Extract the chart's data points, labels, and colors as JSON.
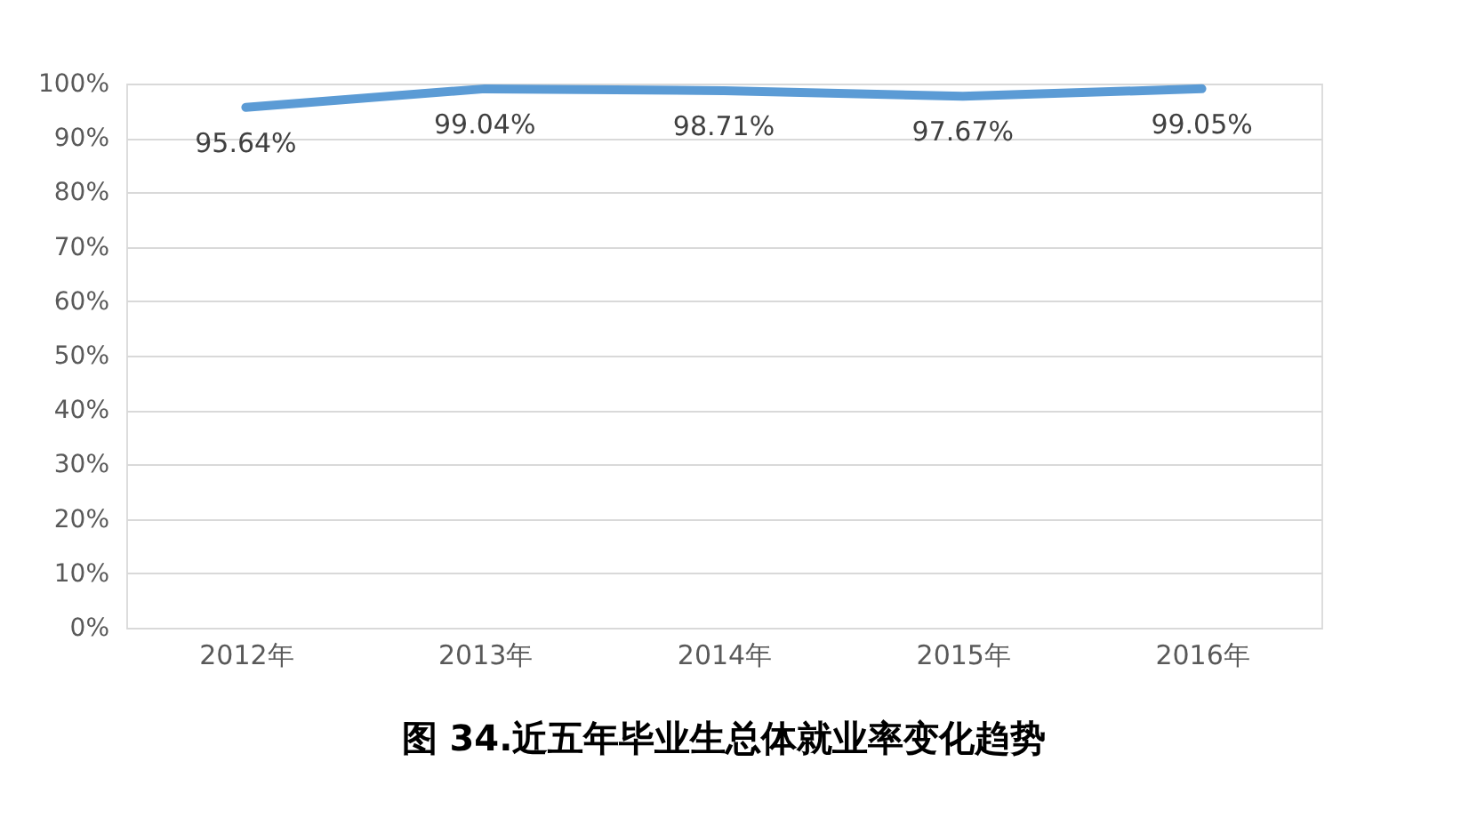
{
  "chart_data": {
    "type": "line",
    "title": "图 34.近五年毕业生总体就业率变化趋势",
    "categories": [
      "2012年",
      "2013年",
      "2014年",
      "2015年",
      "2016年"
    ],
    "series": [
      {
        "color": "#5b9bd5",
        "values": [
          95.64,
          99.04,
          98.71,
          97.67,
          99.05
        ],
        "value_labels": [
          "95.64%",
          "99.04%",
          "98.71%",
          "97.67%",
          "99.05%"
        ]
      }
    ],
    "ylim": [
      0,
      100
    ],
    "yticks": [
      {
        "value": 0,
        "label": "0%"
      },
      {
        "value": 10,
        "label": "10%"
      },
      {
        "value": 20,
        "label": "20%"
      },
      {
        "value": 30,
        "label": "30%"
      },
      {
        "value": 40,
        "label": "40%"
      },
      {
        "value": 50,
        "label": "50%"
      },
      {
        "value": 60,
        "label": "60%"
      },
      {
        "value": 70,
        "label": "70%"
      },
      {
        "value": 80,
        "label": "80%"
      },
      {
        "value": 90,
        "label": "90%"
      },
      {
        "value": 100,
        "label": "100%"
      }
    ],
    "grid": "y",
    "marker": "none",
    "line_style": "solid"
  }
}
